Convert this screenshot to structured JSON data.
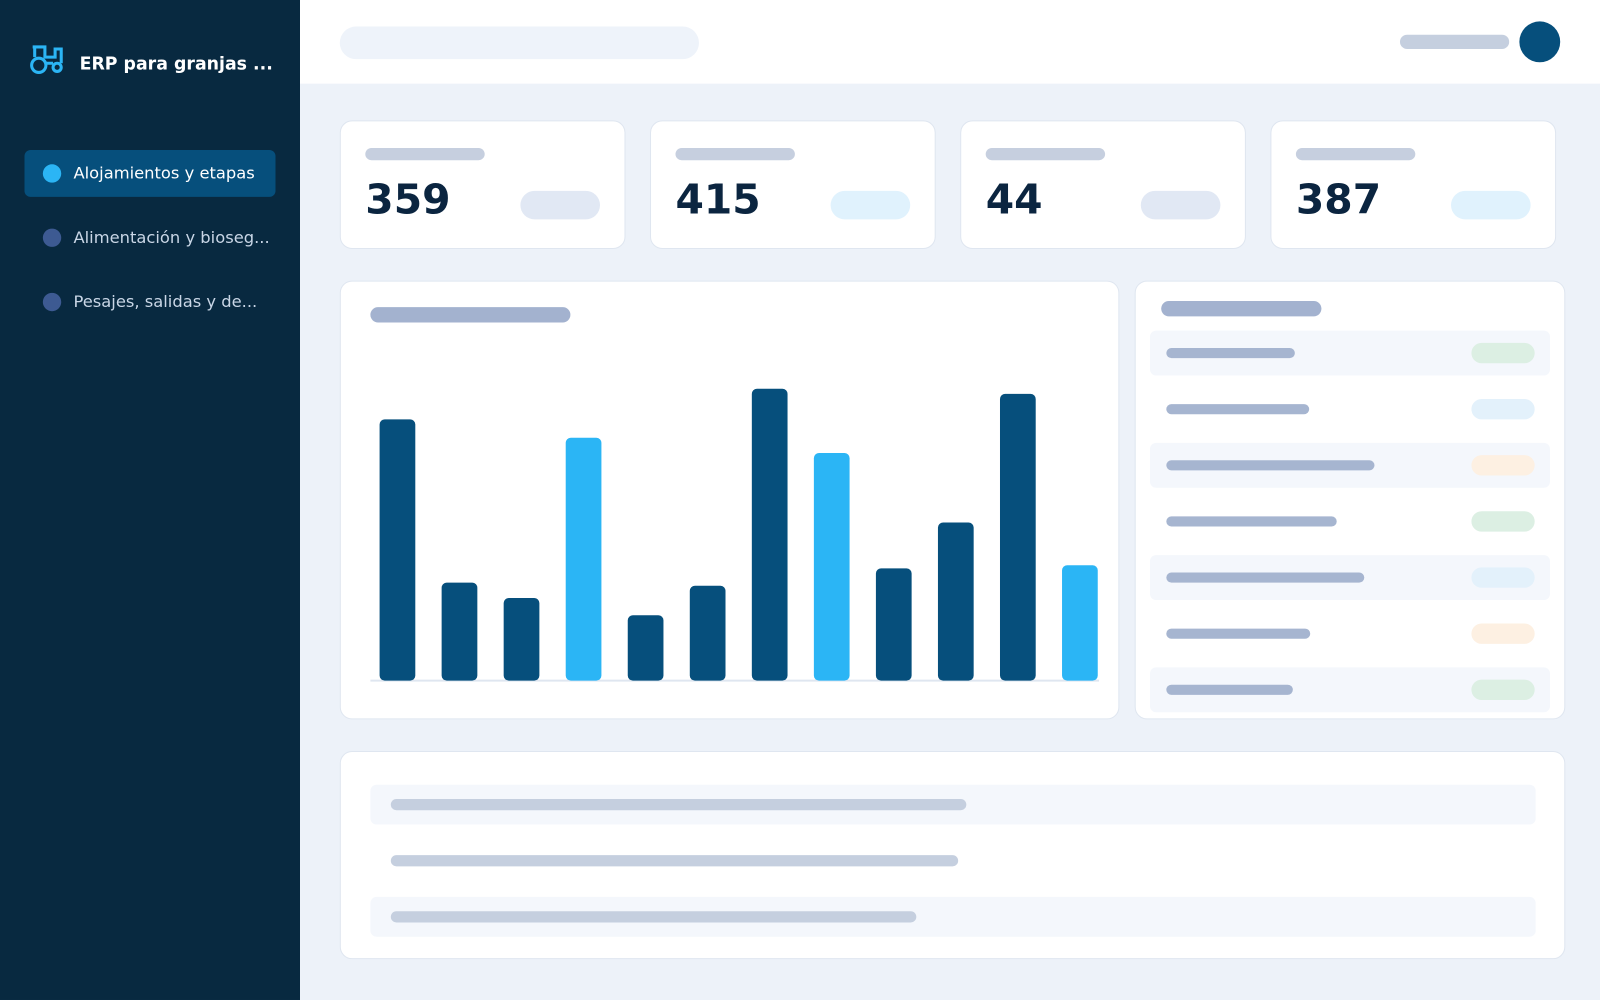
{
  "sidebar": {
    "title": "ERP para granjas ...",
    "nav": [
      "Alojamientos y etapas",
      "Alimentación y bioseg...",
      "Pesajes, salidas y de..."
    ]
  },
  "kpis": [
    359,
    415,
    44,
    387
  ],
  "chart_data": {
    "type": "bar",
    "values": [
      256,
      96,
      81,
      238,
      64,
      93,
      286,
      223,
      110,
      155,
      281,
      113
    ],
    "colors": [
      "#064f7c",
      "#064f7c",
      "#064f7c",
      "#2bb5f5",
      "#064f7c",
      "#064f7c",
      "#064f7c",
      "#2bb5f5",
      "#064f7c",
      "#064f7c",
      "#064f7c",
      "#2bb5f5"
    ]
  }
}
